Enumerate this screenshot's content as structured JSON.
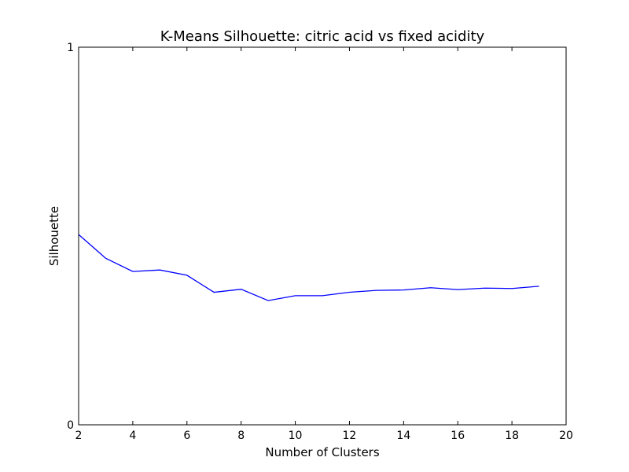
{
  "chart_data": {
    "type": "line",
    "title": "K-Means Silhouette: citric acid vs fixed acidity",
    "xlabel": "Number of Clusters",
    "ylabel": "Silhouette",
    "xlim": [
      2,
      20
    ],
    "ylim": [
      0,
      1
    ],
    "xticks": [
      2,
      4,
      6,
      8,
      10,
      12,
      14,
      16,
      18,
      20
    ],
    "yticks": [
      0,
      1
    ],
    "grid": false,
    "series": [
      {
        "color": "#0000ff",
        "x": [
          2,
          3,
          4,
          5,
          6,
          7,
          8,
          9,
          10,
          11,
          12,
          13,
          14,
          15,
          16,
          17,
          18,
          19
        ],
        "y": [
          0.504,
          0.441,
          0.406,
          0.41,
          0.396,
          0.351,
          0.359,
          0.329,
          0.342,
          0.342,
          0.351,
          0.356,
          0.357,
          0.363,
          0.358,
          0.362,
          0.361,
          0.367
        ]
      }
    ]
  }
}
